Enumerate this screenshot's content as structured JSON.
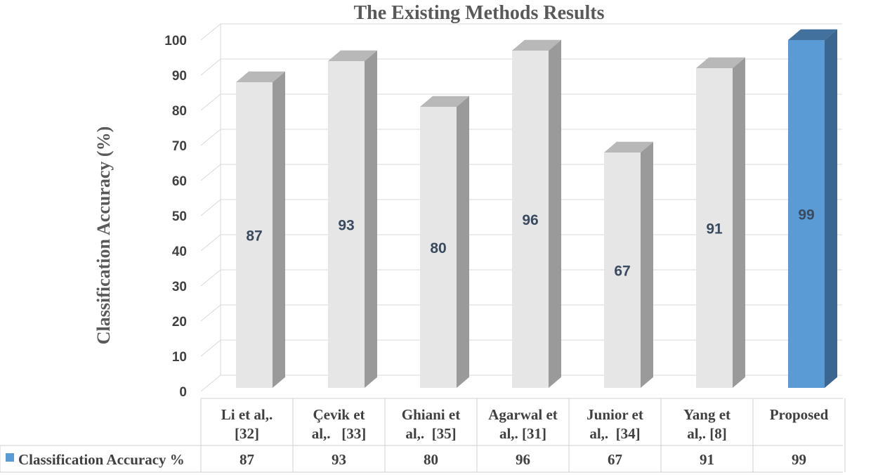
{
  "chart_data": {
    "type": "bar",
    "title": "The Existing Methods Results",
    "ylabel": "Classification Accuracy  (%)",
    "xlabel": "",
    "ylim": [
      0,
      100
    ],
    "yticks": [
      0,
      10,
      20,
      30,
      40,
      50,
      60,
      70,
      80,
      90,
      100
    ],
    "grid": true,
    "legend_position": "bottom-left (data table)",
    "categories": [
      [
        "Li et al,.",
        "[32]"
      ],
      [
        "Çevik et",
        "al,.   [33]"
      ],
      [
        "Ghiani et",
        "al,.  [35]"
      ],
      [
        "Agarwal et",
        "al,. [31]"
      ],
      [
        "Junior et",
        "al,.  [34]"
      ],
      [
        "Yang et",
        "al,. [8]"
      ],
      [
        "Proposed"
      ]
    ],
    "series": [
      {
        "name": "Classification Accuracy %",
        "values": [
          87,
          93,
          80,
          96,
          67,
          91,
          99
        ],
        "data_labels": [
          "87",
          "93",
          "80",
          "96",
          "67",
          "91",
          "99"
        ],
        "table_values": [
          "87",
          "93",
          "80",
          "96",
          "67",
          "91",
          "99"
        ]
      }
    ],
    "colors": {
      "bar_front": "#e6e6e6",
      "bar_side": "#9a9a9a",
      "bar_top": "#b8b8b8",
      "highlight_front": "#5b9bd5",
      "highlight_side": "#3a6690",
      "highlight_top": "#41719c",
      "grid": "#d9d9d9",
      "legend_marker": "#5b9bd5"
    },
    "highlight_index": 6
  }
}
